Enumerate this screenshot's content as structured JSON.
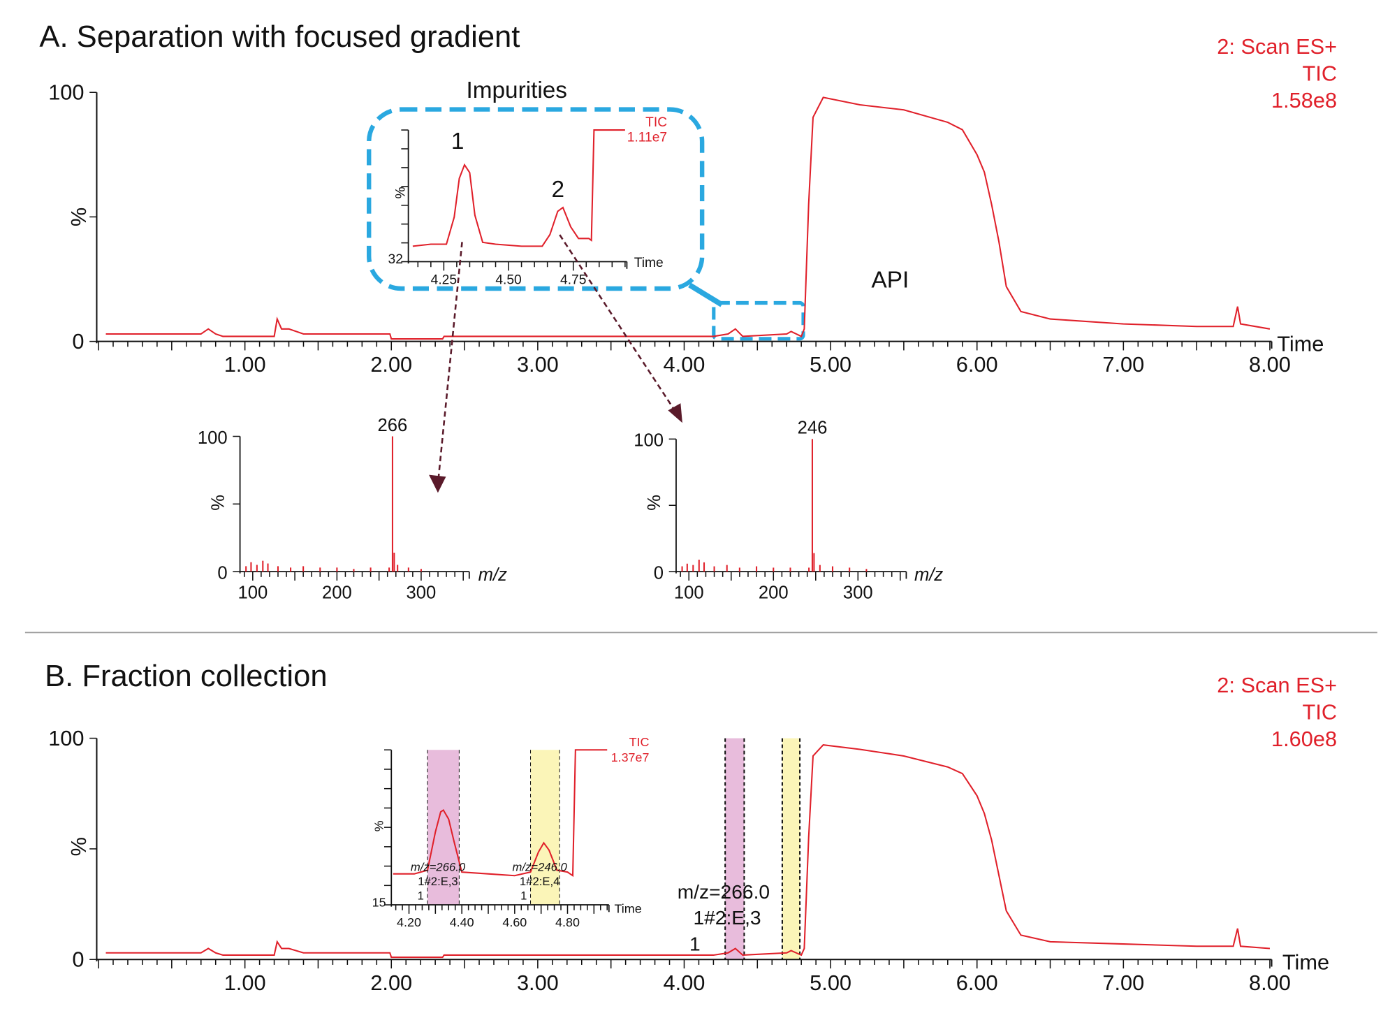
{
  "colors": {
    "trace": "#e0202a",
    "highlight_box": "#2aa8e0",
    "arrow": "#5a1a2a",
    "fraction_1": "#e8bcdc",
    "fraction_2": "#fbf5b8"
  },
  "panel_a": {
    "title": "A. Separation with focused gradient",
    "annotation": [
      "2: Scan ES+",
      "TIC",
      "1.58e8"
    ],
    "impurities_label": "Impurities",
    "api_label": "API"
  },
  "panel_b": {
    "title": "B. Fraction collection",
    "annotation": [
      "2: Scan ES+",
      "TIC",
      "1.60e8"
    ],
    "fraction_label": [
      "m/z=266.0",
      "1#2:E,3",
      "1"
    ]
  },
  "chart_data": [
    {
      "id": "a_main",
      "type": "line",
      "xlabel": "Time",
      "ylabel": "%",
      "xlim": [
        0,
        8.0
      ],
      "ylim": [
        0,
        100
      ],
      "xticks": [
        "1.00",
        "2.00",
        "3.00",
        "4.00",
        "5.00",
        "6.00",
        "7.00",
        "8.00"
      ],
      "yticks": [
        "0",
        "100"
      ],
      "x": [
        0.05,
        0.7,
        0.75,
        0.8,
        0.85,
        1.2,
        1.22,
        1.25,
        1.3,
        1.4,
        1.99,
        2.0,
        2.35,
        2.36,
        4.2,
        4.3,
        4.35,
        4.4,
        4.7,
        4.73,
        4.8,
        4.82,
        4.85,
        4.88,
        4.95,
        5.2,
        5.5,
        5.8,
        5.9,
        6.0,
        6.05,
        6.1,
        6.15,
        6.2,
        6.3,
        6.5,
        7.0,
        7.5,
        7.75,
        7.78,
        7.8,
        8.0
      ],
      "y": [
        3,
        3,
        5,
        3,
        2,
        2,
        9,
        5,
        5,
        3,
        3,
        1,
        1,
        2,
        2,
        3,
        5,
        2,
        3,
        4,
        2,
        5,
        55,
        90,
        98,
        95,
        93,
        88,
        85,
        75,
        68,
        55,
        40,
        22,
        12,
        9,
        7,
        6,
        6,
        14,
        7,
        5
      ]
    },
    {
      "id": "a_inset",
      "type": "line",
      "xlabel": "Time",
      "ylabel": "%",
      "xlim": [
        4.12,
        4.95
      ],
      "ylim": [
        32,
        100
      ],
      "xticks": [
        "4.25",
        "4.50",
        "4.75"
      ],
      "yticks": [
        "32"
      ],
      "legend": [
        "TIC",
        "1.11e7"
      ],
      "peak_labels": [
        "1",
        "2"
      ],
      "x": [
        4.13,
        4.2,
        4.26,
        4.29,
        4.31,
        4.33,
        4.35,
        4.37,
        4.4,
        4.45,
        4.55,
        4.63,
        4.66,
        4.69,
        4.71,
        4.74,
        4.77,
        4.81,
        4.82,
        4.83,
        4.95
      ],
      "y": [
        40,
        41,
        41,
        55,
        75,
        82,
        78,
        56,
        42,
        41,
        40,
        40,
        46,
        58,
        60,
        50,
        44,
        44,
        43,
        100,
        100
      ]
    },
    {
      "id": "a_spectrum_1",
      "type": "bar",
      "xlabel": "m/z",
      "ylabel": "%",
      "xlim": [
        87,
        355
      ],
      "ylim": [
        0,
        100
      ],
      "xticks": [
        "100",
        "200",
        "300"
      ],
      "yticks": [
        "0",
        "100"
      ],
      "peak_label": "266",
      "x": [
        92,
        98,
        105,
        112,
        118,
        130,
        145,
        160,
        180,
        200,
        220,
        240,
        262,
        266,
        268,
        272,
        285,
        300
      ],
      "y": [
        4,
        7,
        5,
        8,
        6,
        4,
        3,
        4,
        3,
        3,
        2,
        3,
        3,
        100,
        14,
        5,
        3,
        2
      ]
    },
    {
      "id": "a_spectrum_2",
      "type": "bar",
      "xlabel": "m/z",
      "ylabel": "%",
      "xlim": [
        87,
        355
      ],
      "ylim": [
        0,
        100
      ],
      "xticks": [
        "100",
        "200",
        "300"
      ],
      "yticks": [
        "0",
        "100"
      ],
      "peak_label": "246",
      "x": [
        92,
        98,
        105,
        112,
        118,
        130,
        145,
        160,
        180,
        200,
        220,
        242,
        246,
        248,
        255,
        270,
        290,
        310
      ],
      "y": [
        4,
        6,
        5,
        9,
        7,
        4,
        5,
        3,
        4,
        3,
        3,
        3,
        100,
        14,
        5,
        4,
        3,
        2
      ]
    },
    {
      "id": "b_main",
      "type": "line",
      "xlabel": "Time",
      "ylabel": "%",
      "xlim": [
        0,
        8.0
      ],
      "ylim": [
        0,
        100
      ],
      "xticks": [
        "1.00",
        "2.00",
        "3.00",
        "4.00",
        "5.00",
        "6.00",
        "7.00",
        "8.00"
      ],
      "yticks": [
        "0",
        "100"
      ],
      "fractions": [
        {
          "from": 4.28,
          "to": 4.41,
          "color": "fraction_1"
        },
        {
          "from": 4.67,
          "to": 4.79,
          "color": "fraction_2"
        }
      ],
      "x": [
        0.05,
        0.7,
        0.75,
        0.8,
        0.85,
        1.2,
        1.22,
        1.25,
        1.3,
        1.4,
        1.99,
        2.0,
        2.35,
        2.36,
        4.2,
        4.3,
        4.35,
        4.4,
        4.7,
        4.73,
        4.8,
        4.82,
        4.85,
        4.88,
        4.95,
        5.2,
        5.5,
        5.8,
        5.9,
        6.0,
        6.05,
        6.1,
        6.15,
        6.2,
        6.3,
        6.5,
        7.0,
        7.5,
        7.75,
        7.78,
        7.8,
        8.0
      ],
      "y": [
        3,
        3,
        5,
        3,
        2,
        2,
        8,
        5,
        5,
        3,
        3,
        1,
        1,
        2,
        2,
        3,
        5,
        2,
        3,
        4,
        2,
        5,
        55,
        92,
        97,
        95,
        92,
        87,
        84,
        74,
        66,
        54,
        38,
        22,
        11,
        8,
        7,
        6,
        6,
        14,
        6,
        5
      ]
    },
    {
      "id": "b_inset",
      "type": "line",
      "xlabel": "Time",
      "ylabel": "%",
      "xlim": [
        4.14,
        4.95
      ],
      "ylim": [
        15,
        100
      ],
      "xticks": [
        "4.20",
        "4.40",
        "4.60",
        "4.80"
      ],
      "yticks": [
        "15"
      ],
      "legend": [
        "TIC",
        "1.37e7"
      ],
      "fractions": [
        {
          "from": 4.27,
          "to": 4.39,
          "color": "fraction_1",
          "label": [
            "m/z=266.0",
            "1#2:E,3",
            "1"
          ]
        },
        {
          "from": 4.66,
          "to": 4.77,
          "color": "fraction_2",
          "label": [
            "m/z=246.0",
            "1#2:E,4",
            "1"
          ]
        }
      ],
      "x": [
        4.14,
        4.22,
        4.27,
        4.3,
        4.32,
        4.33,
        4.35,
        4.37,
        4.4,
        4.5,
        4.6,
        4.66,
        4.69,
        4.71,
        4.73,
        4.76,
        4.8,
        4.82,
        4.83,
        4.95
      ],
      "y": [
        32,
        32,
        34,
        55,
        66,
        67,
        62,
        50,
        33,
        32,
        31,
        33,
        44,
        49,
        45,
        34,
        33,
        31,
        100,
        100
      ]
    }
  ]
}
